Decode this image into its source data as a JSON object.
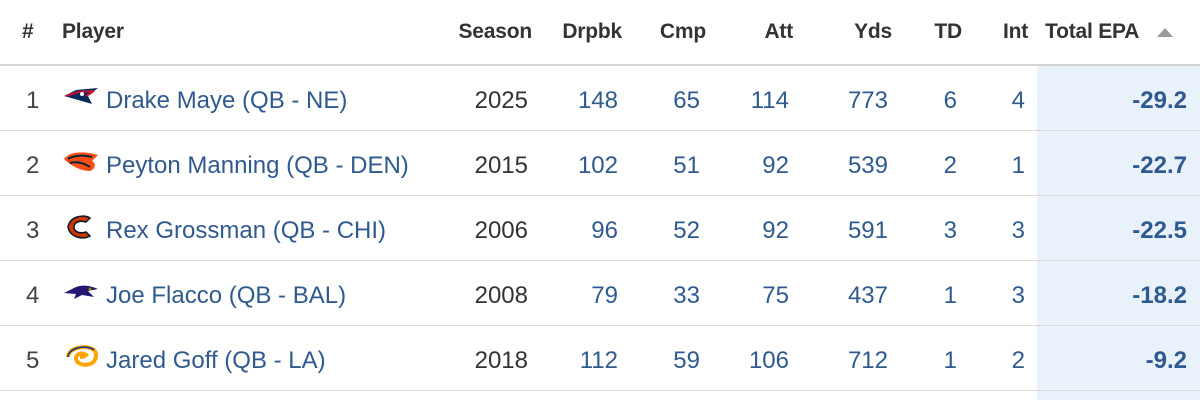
{
  "columns": {
    "rank": "#",
    "player": "Player",
    "season": "Season",
    "drpbk": "Drpbk",
    "cmp": "Cmp",
    "att": "Att",
    "yds": "Yds",
    "td": "TD",
    "int": "Int",
    "epa": "Total EPA",
    "sorted_column": "Total EPA",
    "sort_direction": "ascending"
  },
  "rows": [
    {
      "rank": "1",
      "team_logo": "patriots-logo-icon",
      "player": "Drake Maye (QB - NE)",
      "season": "2025",
      "drpbk": "148",
      "cmp": "65",
      "att": "114",
      "yds": "773",
      "td": "6",
      "int": "4",
      "epa": "-29.2"
    },
    {
      "rank": "2",
      "team_logo": "broncos-logo-icon",
      "player": "Peyton Manning (QB - DEN)",
      "season": "2015",
      "drpbk": "102",
      "cmp": "51",
      "att": "92",
      "yds": "539",
      "td": "2",
      "int": "1",
      "epa": "-22.7"
    },
    {
      "rank": "3",
      "team_logo": "bears-logo-icon",
      "player": "Rex Grossman (QB - CHI)",
      "season": "2006",
      "drpbk": "96",
      "cmp": "52",
      "att": "92",
      "yds": "591",
      "td": "3",
      "int": "3",
      "epa": "-22.5"
    },
    {
      "rank": "4",
      "team_logo": "ravens-logo-icon",
      "player": "Joe Flacco (QB - BAL)",
      "season": "2008",
      "drpbk": "79",
      "cmp": "33",
      "att": "75",
      "yds": "437",
      "td": "1",
      "int": "3",
      "epa": "-18.2"
    },
    {
      "rank": "5",
      "team_logo": "rams-logo-icon",
      "player": "Jared Goff (QB - LA)",
      "season": "2018",
      "drpbk": "112",
      "cmp": "59",
      "att": "106",
      "yds": "712",
      "td": "1",
      "int": "2",
      "epa": "-9.2"
    }
  ],
  "colors": {
    "link": "#2f5a8f",
    "sorted_column_bg": "#e9f2fb",
    "header_text": "#333333"
  }
}
